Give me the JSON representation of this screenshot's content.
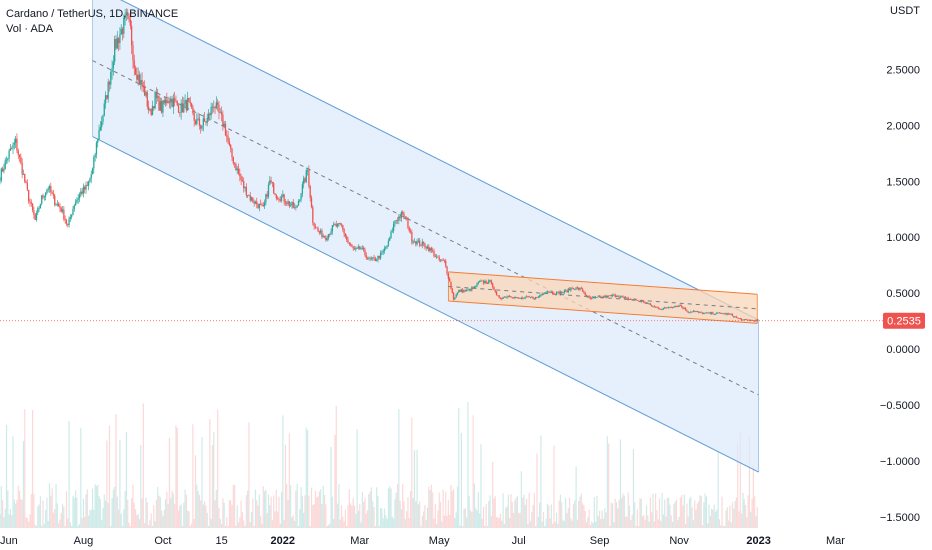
{
  "chart_data": {
    "type": "candlestick",
    "title": "Cardano / TetherUS, 1D, BINANCE",
    "volume_label": "Vol · ADA",
    "currency_label": "USDT",
    "current_price": "0.2535",
    "y_ticks": [
      "2.5000",
      "2.0000",
      "1.5000",
      "1.0000",
      "0.5000",
      "0.0000",
      "−0.5000",
      "−1.0000",
      "−1.5000"
    ],
    "y_tick_values": [
      2.5,
      2.0,
      1.5,
      1.0,
      0.5,
      0.0,
      -0.5,
      -1.0,
      -1.5
    ],
    "ylim": [
      -1.6,
      3.05
    ],
    "x_ticks": [
      {
        "label": "Jun",
        "date": "2021-06-01",
        "bold": false
      },
      {
        "label": "Aug",
        "date": "2021-08-01",
        "bold": false
      },
      {
        "label": "Oct",
        "date": "2021-10-01",
        "bold": false
      },
      {
        "label": "15",
        "date": "2021-11-15",
        "bold": false
      },
      {
        "label": "2022",
        "date": "2022-01-01",
        "bold": true
      },
      {
        "label": "Mar",
        "date": "2022-03-01",
        "bold": false
      },
      {
        "label": "May",
        "date": "2022-05-01",
        "bold": false
      },
      {
        "label": "Jul",
        "date": "2022-07-01",
        "bold": false
      },
      {
        "label": "Sep",
        "date": "2022-09-01",
        "bold": false
      },
      {
        "label": "Nov",
        "date": "2022-11-01",
        "bold": false
      },
      {
        "label": "2023",
        "date": "2023-01-01",
        "bold": true
      },
      {
        "label": "Mar",
        "date": "2023-03-01",
        "bold": false
      }
    ],
    "xlim": [
      "2021-05-29",
      "2023-04-08"
    ],
    "price_series": [
      [
        "2021-05-29",
        1.55
      ],
      [
        "2021-06-05",
        1.75
      ],
      [
        "2021-06-10",
        1.85
      ],
      [
        "2021-06-15",
        1.6
      ],
      [
        "2021-06-20",
        1.35
      ],
      [
        "2021-06-25",
        1.15
      ],
      [
        "2021-06-30",
        1.35
      ],
      [
        "2021-07-05",
        1.45
      ],
      [
        "2021-07-10",
        1.32
      ],
      [
        "2021-07-15",
        1.25
      ],
      [
        "2021-07-20",
        1.1
      ],
      [
        "2021-07-25",
        1.3
      ],
      [
        "2021-07-30",
        1.4
      ],
      [
        "2021-08-04",
        1.45
      ],
      [
        "2021-08-08",
        1.6
      ],
      [
        "2021-08-12",
        1.9
      ],
      [
        "2021-08-16",
        2.1
      ],
      [
        "2021-08-20",
        2.35
      ],
      [
        "2021-08-25",
        2.7
      ],
      [
        "2021-08-30",
        2.85
      ],
      [
        "2021-09-03",
        2.95
      ],
      [
        "2021-09-06",
        2.85
      ],
      [
        "2021-09-09",
        2.55
      ],
      [
        "2021-09-13",
        2.4
      ],
      [
        "2021-09-17",
        2.3
      ],
      [
        "2021-09-21",
        2.1
      ],
      [
        "2021-09-25",
        2.25
      ],
      [
        "2021-09-30",
        2.15
      ],
      [
        "2021-10-05",
        2.25
      ],
      [
        "2021-10-10",
        2.2
      ],
      [
        "2021-10-15",
        2.15
      ],
      [
        "2021-10-20",
        2.2
      ],
      [
        "2021-10-25",
        2.05
      ],
      [
        "2021-10-30",
        2.0
      ],
      [
        "2021-11-04",
        2.05
      ],
      [
        "2021-11-09",
        2.2
      ],
      [
        "2021-11-13",
        2.1
      ],
      [
        "2021-11-17",
        2.0
      ],
      [
        "2021-11-22",
        1.75
      ],
      [
        "2021-11-27",
        1.6
      ],
      [
        "2021-12-02",
        1.45
      ],
      [
        "2021-12-07",
        1.35
      ],
      [
        "2021-12-12",
        1.3
      ],
      [
        "2021-12-17",
        1.25
      ],
      [
        "2021-12-22",
        1.5
      ],
      [
        "2021-12-27",
        1.38
      ],
      [
        "2022-01-01",
        1.35
      ],
      [
        "2022-01-06",
        1.3
      ],
      [
        "2022-01-11",
        1.25
      ],
      [
        "2022-01-16",
        1.45
      ],
      [
        "2022-01-20",
        1.6
      ],
      [
        "2022-01-24",
        1.15
      ],
      [
        "2022-01-28",
        1.05
      ],
      [
        "2022-02-03",
        1.0
      ],
      [
        "2022-02-09",
        1.1
      ],
      [
        "2022-02-15",
        1.1
      ],
      [
        "2022-02-20",
        0.95
      ],
      [
        "2022-02-25",
        0.88
      ],
      [
        "2022-03-02",
        0.9
      ],
      [
        "2022-03-08",
        0.8
      ],
      [
        "2022-03-13",
        0.8
      ],
      [
        "2022-03-18",
        0.85
      ],
      [
        "2022-03-23",
        0.95
      ],
      [
        "2022-03-28",
        1.15
      ],
      [
        "2022-04-02",
        1.2
      ],
      [
        "2022-04-06",
        1.15
      ],
      [
        "2022-04-10",
        0.98
      ],
      [
        "2022-04-15",
        0.95
      ],
      [
        "2022-04-20",
        0.93
      ],
      [
        "2022-04-25",
        0.88
      ],
      [
        "2022-04-30",
        0.8
      ],
      [
        "2022-05-05",
        0.78
      ],
      [
        "2022-05-09",
        0.6
      ],
      [
        "2022-05-12",
        0.45
      ],
      [
        "2022-05-16",
        0.52
      ],
      [
        "2022-05-22",
        0.52
      ],
      [
        "2022-05-28",
        0.55
      ],
      [
        "2022-06-01",
        0.6
      ],
      [
        "2022-06-05",
        0.6
      ],
      [
        "2022-06-10",
        0.6
      ],
      [
        "2022-06-14",
        0.47
      ],
      [
        "2022-06-18",
        0.46
      ],
      [
        "2022-06-24",
        0.48
      ],
      [
        "2022-07-01",
        0.45
      ],
      [
        "2022-07-08",
        0.46
      ],
      [
        "2022-07-15",
        0.46
      ],
      [
        "2022-07-22",
        0.52
      ],
      [
        "2022-07-29",
        0.5
      ],
      [
        "2022-08-05",
        0.51
      ],
      [
        "2022-08-12",
        0.55
      ],
      [
        "2022-08-18",
        0.53
      ],
      [
        "2022-08-24",
        0.45
      ],
      [
        "2022-08-31",
        0.46
      ],
      [
        "2022-09-07",
        0.47
      ],
      [
        "2022-09-14",
        0.48
      ],
      [
        "2022-09-21",
        0.45
      ],
      [
        "2022-09-28",
        0.44
      ],
      [
        "2022-10-05",
        0.42
      ],
      [
        "2022-10-12",
        0.38
      ],
      [
        "2022-10-19",
        0.36
      ],
      [
        "2022-10-26",
        0.38
      ],
      [
        "2022-11-02",
        0.39
      ],
      [
        "2022-11-08",
        0.33
      ],
      [
        "2022-11-12",
        0.34
      ],
      [
        "2022-11-19",
        0.32
      ],
      [
        "2022-11-26",
        0.32
      ],
      [
        "2022-12-03",
        0.32
      ],
      [
        "2022-12-10",
        0.31
      ],
      [
        "2022-12-15",
        0.28
      ],
      [
        "2022-12-20",
        0.26
      ],
      [
        "2022-12-25",
        0.26
      ],
      [
        "2022-12-31",
        0.2535
      ]
    ],
    "overlays": {
      "main_channel": {
        "upper": [
          [
            "2021-08-08",
            3.25
          ],
          [
            "2023-01-01",
            0.26
          ]
        ],
        "lower": [
          [
            "2021-08-08",
            1.9
          ],
          [
            "2023-01-01",
            -1.1
          ]
        ],
        "mid": [
          [
            "2021-08-08",
            2.58
          ],
          [
            "2023-01-01",
            -0.41
          ]
        ]
      },
      "inner_channel": {
        "upper": [
          [
            "2022-05-08",
            0.69
          ],
          [
            "2022-12-31",
            0.49
          ]
        ],
        "lower": [
          [
            "2022-05-08",
            0.43
          ],
          [
            "2022-12-31",
            0.23
          ]
        ],
        "mid": [
          [
            "2022-05-08",
            0.56
          ],
          [
            "2022-12-31",
            0.36
          ]
        ]
      }
    },
    "colors": {
      "up": "#26a69a",
      "down": "#ef5350",
      "channel_line": "#5b9bd5",
      "channel_fill": "#dbeafc",
      "inner_line": "#f57c32",
      "inner_fill": "#fad7b8",
      "midline": "#787b86",
      "price_line": "#ef5350",
      "axis_text": "#131722"
    },
    "grid": false,
    "volume": true
  }
}
